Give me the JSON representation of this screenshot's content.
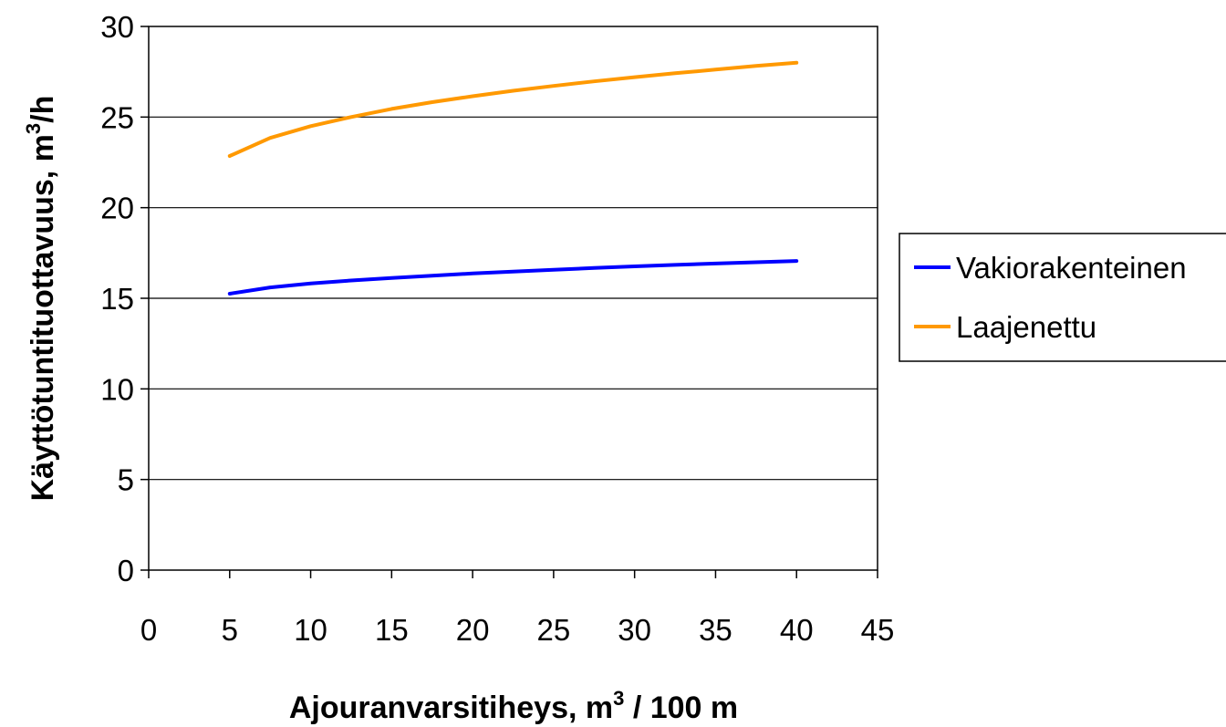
{
  "chart_data": {
    "type": "line",
    "title": "",
    "xlabel": "Ajouranvarsitiheys, m",
    "xlabel_sup": "3",
    "xlabel_suffix": " / 100 m",
    "ylabel": "Käyttötuntituottavuus, m",
    "ylabel_sup": "3",
    "ylabel_suffix": "/h",
    "xlim": [
      0,
      45
    ],
    "ylim": [
      0,
      30
    ],
    "x_ticks": [
      0,
      5,
      10,
      15,
      20,
      25,
      30,
      35,
      40,
      45
    ],
    "y_ticks": [
      0,
      5,
      10,
      15,
      20,
      25,
      30
    ],
    "grid": "horizontal",
    "legend_position": "right",
    "x": [
      5,
      7.5,
      10,
      12.5,
      15,
      17.5,
      20,
      22.5,
      25,
      27.5,
      30,
      32.5,
      35,
      37.5,
      40
    ],
    "series": [
      {
        "name": "Vakiorakenteinen",
        "color": "#0000ff",
        "values": [
          15.25,
          15.6,
          15.82,
          15.98,
          16.12,
          16.25,
          16.37,
          16.47,
          16.57,
          16.67,
          16.76,
          16.84,
          16.92,
          16.99,
          17.06
        ]
      },
      {
        "name": "Laajenettu",
        "color": "#ff9900",
        "values": [
          22.85,
          23.85,
          24.5,
          25.0,
          25.45,
          25.82,
          26.15,
          26.45,
          26.72,
          26.97,
          27.2,
          27.42,
          27.62,
          27.82,
          28.0
        ]
      }
    ]
  }
}
